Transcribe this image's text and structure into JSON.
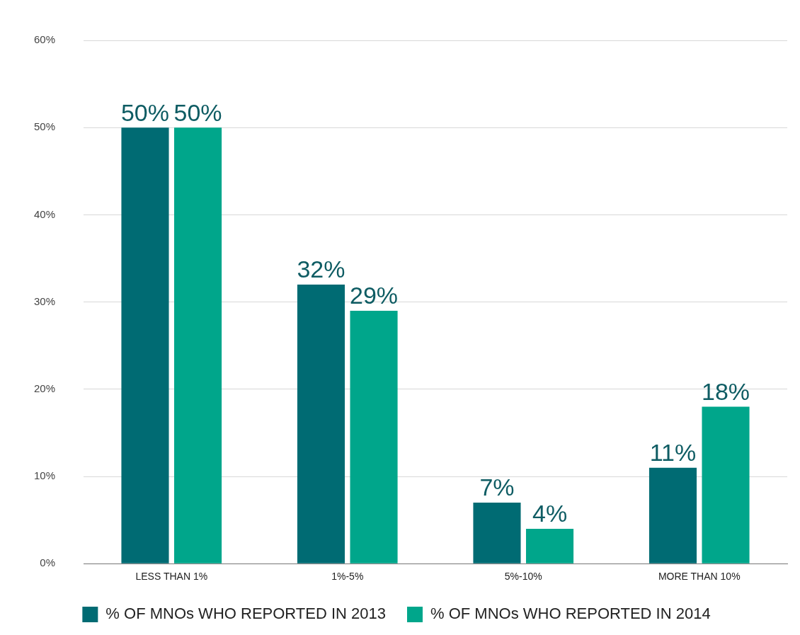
{
  "chart_data": {
    "type": "bar",
    "categories": [
      "LESS THAN 1%",
      "1%-5%",
      "5%-10%",
      "MORE THAN 10%"
    ],
    "series": [
      {
        "name": "% OF MNOs WHO REPORTED IN 2013",
        "color": "#006b73",
        "values": [
          50,
          32,
          7,
          11
        ],
        "value_labels": [
          "50%",
          "32%",
          "7%",
          "11%"
        ]
      },
      {
        "name": "% OF MNOs WHO REPORTED IN 2014",
        "color": "#00a68b",
        "values": [
          50,
          29,
          4,
          18
        ],
        "value_labels": [
          "50%",
          "29%",
          "4%",
          "18%"
        ]
      }
    ],
    "ylim": [
      0,
      60
    ],
    "yticks": [
      {
        "value": 0,
        "label": "0%"
      },
      {
        "value": 10,
        "label": "10%"
      },
      {
        "value": 20,
        "label": "20%"
      },
      {
        "value": 30,
        "label": "30%"
      },
      {
        "value": 40,
        "label": "40%"
      },
      {
        "value": 50,
        "label": "50%"
      },
      {
        "value": 60,
        "label": "60%"
      }
    ],
    "grid": "y",
    "legend": "bottom"
  }
}
